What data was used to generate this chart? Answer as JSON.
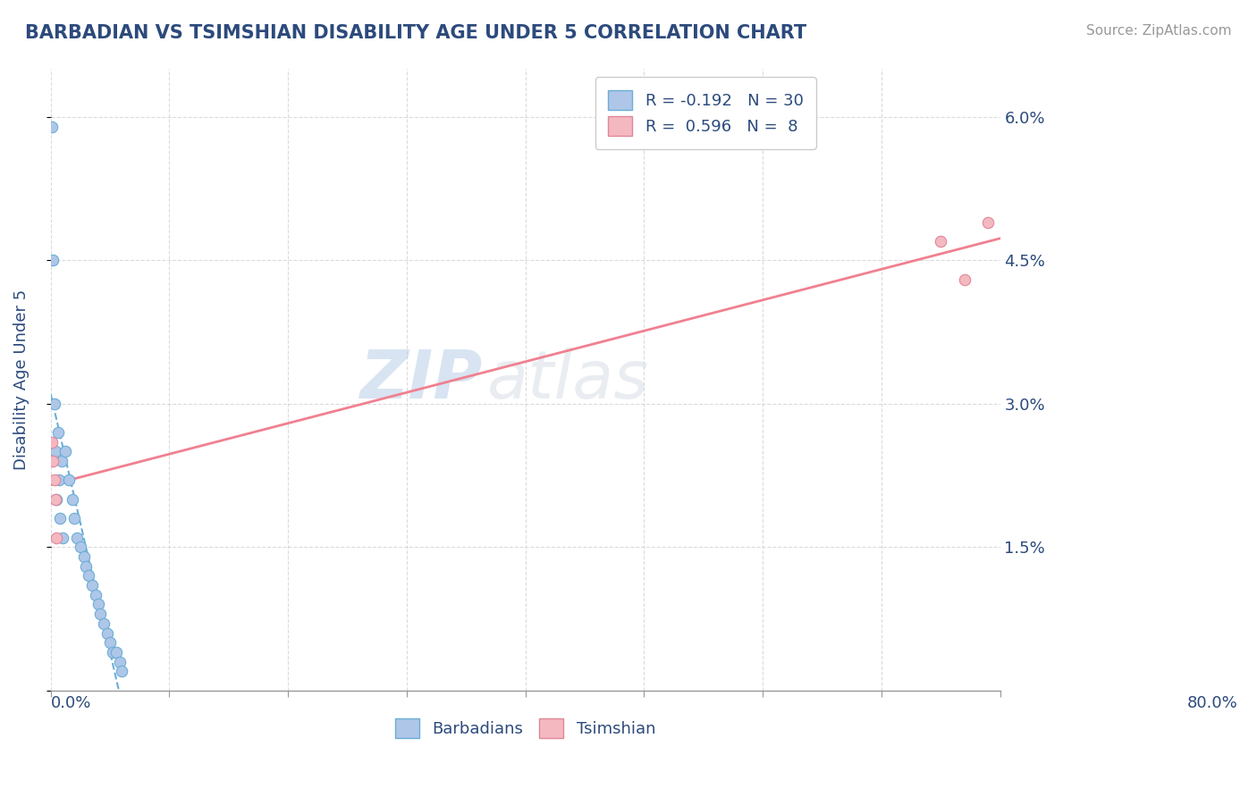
{
  "title": "BARBADIAN VS TSIMSHIAN DISABILITY AGE UNDER 5 CORRELATION CHART",
  "source": "Source: ZipAtlas.com",
  "ylabel": "Disability Age Under 5",
  "xlim": [
    0,
    0.8
  ],
  "ylim": [
    0,
    0.065
  ],
  "yticks": [
    0,
    0.015,
    0.03,
    0.045,
    0.06
  ],
  "ytick_labels": [
    "",
    "1.5%",
    "3.0%",
    "4.5%",
    "6.0%"
  ],
  "legend_r1": "R = -0.192",
  "legend_n1": "N = 30",
  "legend_r2": "R =  0.596",
  "legend_n2": "N =  8",
  "color_barbadian": "#aec6e8",
  "color_tsimshian": "#f4b8c1",
  "color_line_barbadian": "#6baed6",
  "color_line_tsimshian": "#f08090",
  "barbadian_x": [
    0.001,
    0.002,
    0.003,
    0.004,
    0.005,
    0.006,
    0.007,
    0.008,
    0.009,
    0.01,
    0.012,
    0.015,
    0.018,
    0.02,
    0.022,
    0.025,
    0.028,
    0.03,
    0.032,
    0.035,
    0.038,
    0.04,
    0.042,
    0.045,
    0.048,
    0.05,
    0.052,
    0.055,
    0.058,
    0.06
  ],
  "barbadian_y": [
    0.059,
    0.045,
    0.03,
    0.025,
    0.02,
    0.027,
    0.022,
    0.018,
    0.024,
    0.016,
    0.025,
    0.022,
    0.02,
    0.018,
    0.016,
    0.015,
    0.014,
    0.013,
    0.012,
    0.011,
    0.01,
    0.009,
    0.008,
    0.007,
    0.006,
    0.005,
    0.004,
    0.004,
    0.003,
    0.002
  ],
  "tsimshian_x": [
    0.001,
    0.002,
    0.003,
    0.004,
    0.005,
    0.75,
    0.77,
    0.79
  ],
  "tsimshian_y": [
    0.026,
    0.024,
    0.022,
    0.02,
    0.016,
    0.047,
    0.043,
    0.049
  ],
  "watermark_zip": "ZIP",
  "watermark_atlas": "atlas",
  "background_color": "#ffffff",
  "grid_color": "#cccccc",
  "title_color": "#2c4a7c",
  "axis_label_color": "#2c4a7c",
  "tick_color": "#2c4a7c"
}
